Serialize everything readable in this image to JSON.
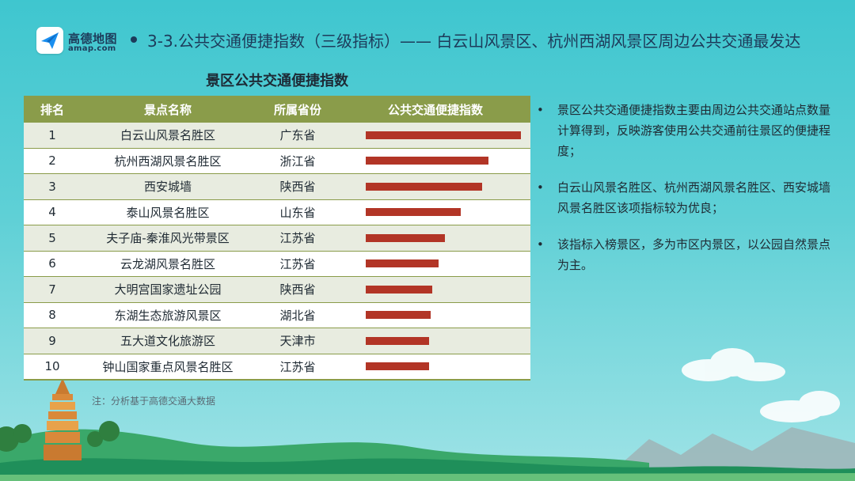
{
  "header": {
    "logo_cn": "高德地图",
    "logo_en": "amap.com",
    "title": "3-3.公共交通便捷指数（三级指标）—— 白云山风景区、杭州西湖风景区周边公共交通最发达"
  },
  "table": {
    "title": "景区公共交通便捷指数",
    "columns": [
      "排名",
      "景点名称",
      "所属省份",
      "公共交通便捷指数"
    ],
    "rows": [
      {
        "rank": "1",
        "name": "白云山风景名胜区",
        "province": "广东省",
        "index": 1.0
      },
      {
        "rank": "2",
        "name": "杭州西湖风景名胜区",
        "province": "浙江省",
        "index": 0.79
      },
      {
        "rank": "3",
        "name": "西安城墙",
        "province": "陕西省",
        "index": 0.75
      },
      {
        "rank": "4",
        "name": "泰山风景名胜区",
        "province": "山东省",
        "index": 0.61
      },
      {
        "rank": "5",
        "name": "夫子庙-秦淮风光带景区",
        "province": "江苏省",
        "index": 0.51
      },
      {
        "rank": "6",
        "name": "云龙湖风景名胜区",
        "province": "江苏省",
        "index": 0.47
      },
      {
        "rank": "7",
        "name": "大明宫国家遗址公园",
        "province": "陕西省",
        "index": 0.43
      },
      {
        "rank": "8",
        "name": "东湖生态旅游风景区",
        "province": "湖北省",
        "index": 0.42
      },
      {
        "rank": "9",
        "name": "五大道文化旅游区",
        "province": "天津市",
        "index": 0.41
      },
      {
        "rank": "10",
        "name": "钟山国家重点风景名胜区",
        "province": "江苏省",
        "index": 0.41
      }
    ]
  },
  "footnote": "注：分析基于高德交通大数据",
  "bullets": [
    "景区公共交通便捷指数主要由周边公共交通站点数量计算得到，反映游客使用公共交通前往景区的便捷程度；",
    "白云山风景名胜区、杭州西湖风景名胜区、西安城墙 风景名胜区该项指标较为优良；",
    "该指标入榜景区，多为市区内景区，以公园自然景点为主。"
  ],
  "colors": {
    "bar": "#b23526",
    "header_bg": "#8a9c4a",
    "background": "#4cc9d2"
  },
  "icons": [
    "amap-paper-plane-icon",
    "pagoda-illustration",
    "hills-illustration",
    "cloud-illustration"
  ]
}
